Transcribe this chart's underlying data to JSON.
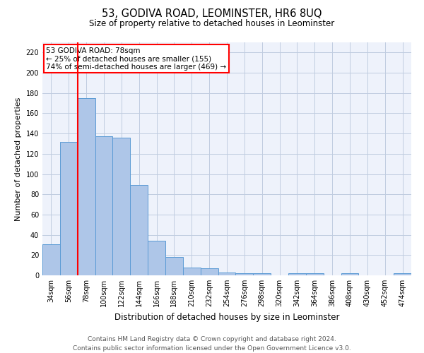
{
  "title": "53, GODIVA ROAD, LEOMINSTER, HR6 8UQ",
  "subtitle": "Size of property relative to detached houses in Leominster",
  "xlabel": "Distribution of detached houses by size in Leominster",
  "ylabel": "Number of detached properties",
  "bar_color": "#aec6e8",
  "bar_edge_color": "#5b9bd5",
  "categories": [
    "34sqm",
    "56sqm",
    "78sqm",
    "100sqm",
    "122sqm",
    "144sqm",
    "166sqm",
    "188sqm",
    "210sqm",
    "232sqm",
    "254sqm",
    "276sqm",
    "298sqm",
    "320sqm",
    "342sqm",
    "364sqm",
    "386sqm",
    "408sqm",
    "430sqm",
    "452sqm",
    "474sqm"
  ],
  "values": [
    31,
    132,
    175,
    137,
    136,
    89,
    34,
    18,
    8,
    7,
    3,
    2,
    2,
    0,
    2,
    2,
    0,
    2,
    0,
    0,
    2
  ],
  "red_line_index": 2,
  "annotation_line1": "53 GODIVA ROAD: 78sqm",
  "annotation_line2": "← 25% of detached houses are smaller (155)",
  "annotation_line3": "74% of semi-detached houses are larger (469) →",
  "annotation_box_color": "white",
  "annotation_box_edge_color": "red",
  "ylim": [
    0,
    230
  ],
  "yticks": [
    0,
    20,
    40,
    60,
    80,
    100,
    120,
    140,
    160,
    180,
    200,
    220
  ],
  "footer1": "Contains HM Land Registry data © Crown copyright and database right 2024.",
  "footer2": "Contains public sector information licensed under the Open Government Licence v3.0.",
  "bg_color": "#eef2fb",
  "grid_color": "#c0cce0",
  "title_fontsize": 10.5,
  "subtitle_fontsize": 8.5,
  "ylabel_fontsize": 8,
  "xlabel_fontsize": 8.5,
  "tick_fontsize": 7,
  "annotation_fontsize": 7.5,
  "footer_fontsize": 6.5
}
